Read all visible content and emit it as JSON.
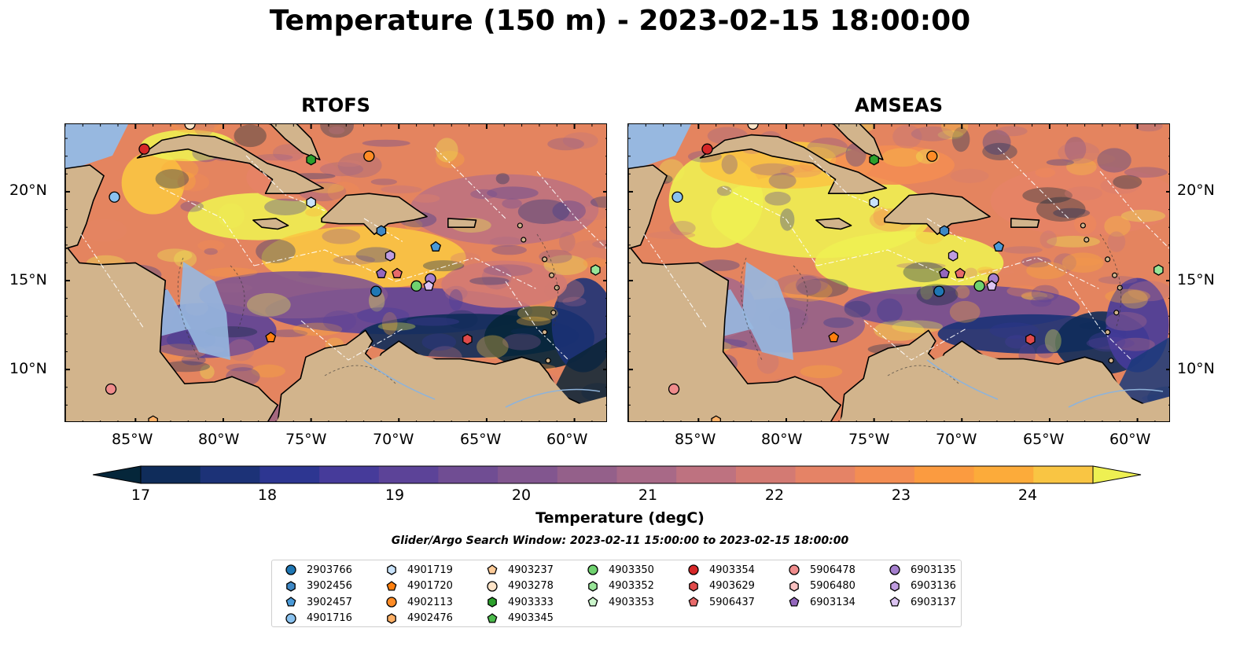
{
  "title": "Temperature (150 m) - 2023-02-15 18:00:00",
  "panels": [
    {
      "title": "RTOFS"
    },
    {
      "title": "AMSEAS"
    }
  ],
  "axes": {
    "lon_ticks": [
      "85°W",
      "80°W",
      "75°W",
      "70°W",
      "65°W",
      "60°W"
    ],
    "lat_ticks": [
      "20°N",
      "15°N",
      "10°N"
    ]
  },
  "colorbar": {
    "label": "Temperature (degC)",
    "ticks": [
      "17",
      "18",
      "19",
      "20",
      "21",
      "22",
      "23",
      "24"
    ],
    "min": 17,
    "max": 24.5,
    "step": 0.5,
    "colors": [
      "#05263a",
      "#0f2c5a",
      "#1c3277",
      "#2d3691",
      "#463b9a",
      "#5c4398",
      "#704d93",
      "#82568f",
      "#94608a",
      "#a86987",
      "#be7280",
      "#d37a73",
      "#e58366",
      "#f38d53",
      "#fb9b40",
      "#fcab3a",
      "#f9c543",
      "#eef052"
    ]
  },
  "search_window": "Glider/Argo Search Window: 2023-02-11 15:00:00 to 2023-02-15 18:00:00",
  "legend": [
    {
      "id": "2903766",
      "marker": "circle",
      "color": "#1f77b4"
    },
    {
      "id": "3902456",
      "marker": "hexagon",
      "color": "#3f88c5"
    },
    {
      "id": "3902457",
      "marker": "pentagon",
      "color": "#4a9ad8"
    },
    {
      "id": "4901716",
      "marker": "circle",
      "color": "#8ac2ef"
    },
    {
      "id": "4901719",
      "marker": "hexagon",
      "color": "#c9e3fb"
    },
    {
      "id": "4901720",
      "marker": "pentagon",
      "color": "#ff7f0e"
    },
    {
      "id": "4902113",
      "marker": "circle",
      "color": "#ff8c26"
    },
    {
      "id": "4902476",
      "marker": "hexagon",
      "color": "#ffb066"
    },
    {
      "id": "4903237",
      "marker": "pentagon",
      "color": "#ffcc99"
    },
    {
      "id": "4903278",
      "marker": "circle",
      "color": "#ffe4c8"
    },
    {
      "id": "4903333",
      "marker": "hexagon",
      "color": "#2ca02c"
    },
    {
      "id": "4903345",
      "marker": "pentagon",
      "color": "#4cbb4c"
    },
    {
      "id": "4903350",
      "marker": "circle",
      "color": "#6fd26f"
    },
    {
      "id": "4903352",
      "marker": "hexagon",
      "color": "#98e598"
    },
    {
      "id": "4903353",
      "marker": "pentagon",
      "color": "#cbf5cb"
    },
    {
      "id": "4903354",
      "marker": "circle",
      "color": "#d62728"
    },
    {
      "id": "4903629",
      "marker": "hexagon",
      "color": "#e04a4a"
    },
    {
      "id": "5906437",
      "marker": "pentagon",
      "color": "#e86a6a"
    },
    {
      "id": "5906478",
      "marker": "circle",
      "color": "#f08c8c"
    },
    {
      "id": "5906480",
      "marker": "hexagon",
      "color": "#f9c0c0"
    },
    {
      "id": "6903134",
      "marker": "pentagon",
      "color": "#9467bd"
    },
    {
      "id": "6903135",
      "marker": "circle",
      "color": "#a57fce"
    },
    {
      "id": "6903136",
      "marker": "hexagon",
      "color": "#bf9ce0"
    },
    {
      "id": "6903137",
      "marker": "pentagon",
      "color": "#dcc4f2"
    }
  ],
  "floats": [
    {
      "id": "4903354",
      "lon": -84.5,
      "lat": 22.4
    },
    {
      "id": "4901716",
      "lon": -86.2,
      "lat": 19.7
    },
    {
      "id": "5906478",
      "lon": -86.4,
      "lat": 8.9
    },
    {
      "id": "4902476",
      "lon": -84.0,
      "lat": 7.1
    },
    {
      "id": "4903278",
      "lon": -81.9,
      "lat": 23.8
    },
    {
      "id": "4903333",
      "lon": -75.0,
      "lat": 21.8
    },
    {
      "id": "4902113",
      "lon": -71.7,
      "lat": 22.0
    },
    {
      "id": "4901719",
      "lon": -75.0,
      "lat": 19.4
    },
    {
      "id": "3902456",
      "lon": -71.0,
      "lat": 17.8
    },
    {
      "id": "3902457",
      "lon": -67.9,
      "lat": 16.9
    },
    {
      "id": "6903136",
      "lon": -70.5,
      "lat": 16.4
    },
    {
      "id": "6903134",
      "lon": -71.0,
      "lat": 15.4
    },
    {
      "id": "5906437",
      "lon": -70.1,
      "lat": 15.4
    },
    {
      "id": "6903135",
      "lon": -68.2,
      "lat": 15.1
    },
    {
      "id": "6903137",
      "lon": -68.3,
      "lat": 14.7
    },
    {
      "id": "4903350",
      "lon": -69.0,
      "lat": 14.7
    },
    {
      "id": "2903766",
      "lon": -71.3,
      "lat": 14.4
    },
    {
      "id": "4903352",
      "lon": -58.8,
      "lat": 15.6
    },
    {
      "id": "4901720",
      "lon": -77.3,
      "lat": 11.8
    },
    {
      "id": "4903629",
      "lon": -66.1,
      "lat": 11.7
    }
  ]
}
